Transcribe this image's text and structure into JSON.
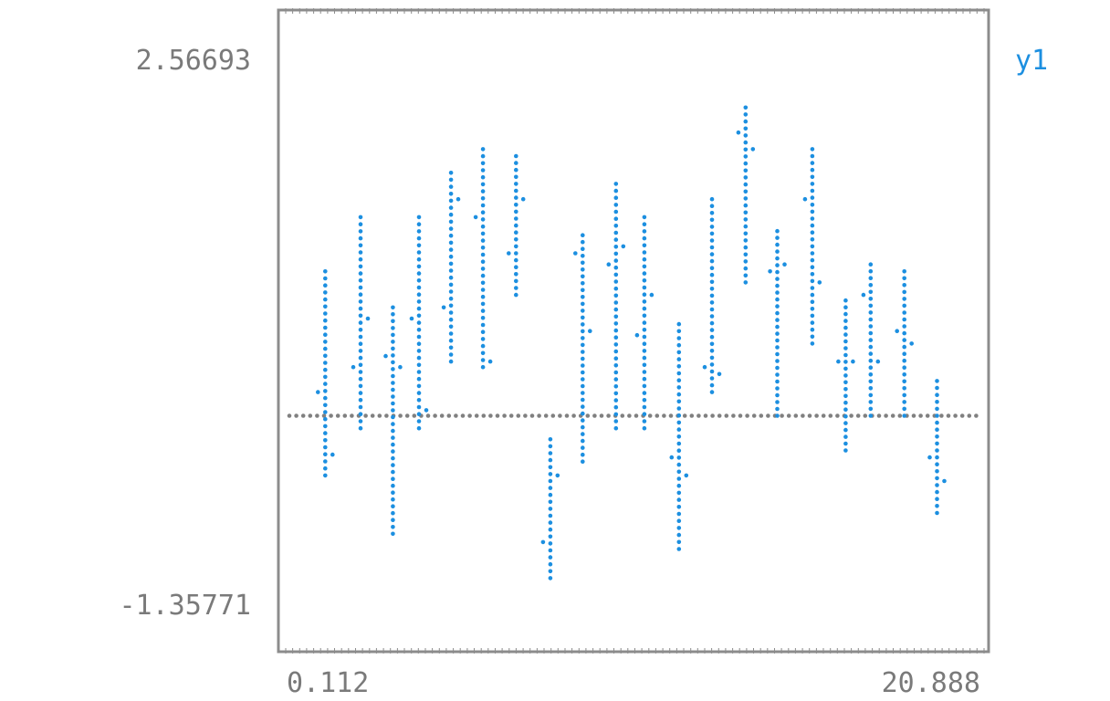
{
  "chart_data": {
    "type": "candlestick",
    "x_ticks": [
      "0.112",
      "20.888"
    ],
    "y_ticks": [
      "2.56693",
      "-1.35771"
    ],
    "xlim": [
      0.112,
      20.888
    ],
    "ylim": [
      -1.35771,
      2.56693
    ],
    "baseline": 0,
    "legend": {
      "label": "y1",
      "position": "top-right"
    },
    "colors": {
      "series": "#1c8fe0",
      "axis": "#8c8c8c",
      "baseline": "#808080",
      "text": "#7a7a7a"
    },
    "bars": [
      {
        "x": 1.2,
        "low": -0.43,
        "high": 1.04,
        "open": 0.17,
        "close": -0.28
      },
      {
        "x": 2.27,
        "low": -0.09,
        "high": 1.43,
        "open": 0.35,
        "close": 0.7
      },
      {
        "x": 3.25,
        "low": -0.85,
        "high": 0.78,
        "open": 0.43,
        "close": 0.35
      },
      {
        "x": 4.04,
        "low": -0.09,
        "high": 1.43,
        "open": 0.7,
        "close": 0.04
      },
      {
        "x": 5.01,
        "low": 0.39,
        "high": 1.75,
        "open": 0.78,
        "close": 1.56
      },
      {
        "x": 5.98,
        "low": 0.35,
        "high": 1.92,
        "open": 1.43,
        "close": 0.39
      },
      {
        "x": 6.98,
        "low": 0.87,
        "high": 1.87,
        "open": 1.17,
        "close": 1.56
      },
      {
        "x": 8.02,
        "low": -1.17,
        "high": -0.17,
        "open": -0.91,
        "close": -0.43
      },
      {
        "x": 9.0,
        "low": -0.33,
        "high": 1.3,
        "open": 1.17,
        "close": 0.61
      },
      {
        "x": 10.01,
        "low": -0.09,
        "high": 1.67,
        "open": 1.09,
        "close": 1.22
      },
      {
        "x": 10.87,
        "low": -0.09,
        "high": 1.43,
        "open": 0.58,
        "close": 0.87
      },
      {
        "x": 11.92,
        "low": -0.96,
        "high": 0.66,
        "open": -0.3,
        "close": -0.43
      },
      {
        "x": 12.92,
        "low": 0.17,
        "high": 1.56,
        "open": 0.35,
        "close": 0.3
      },
      {
        "x": 13.94,
        "low": 0.96,
        "high": 2.22,
        "open": 2.04,
        "close": 1.92
      },
      {
        "x": 14.9,
        "low": 0.0,
        "high": 1.33,
        "open": 1.04,
        "close": 1.09
      },
      {
        "x": 15.96,
        "low": 0.52,
        "high": 1.92,
        "open": 1.56,
        "close": 0.96
      },
      {
        "x": 16.97,
        "low": -0.25,
        "high": 0.83,
        "open": 0.39,
        "close": 0.39
      },
      {
        "x": 17.73,
        "low": 0.0,
        "high": 1.09,
        "open": 0.87,
        "close": 0.39
      },
      {
        "x": 18.75,
        "low": 0.0,
        "high": 1.04,
        "open": 0.61,
        "close": 0.52
      },
      {
        "x": 19.74,
        "low": -0.7,
        "high": 0.25,
        "open": -0.3,
        "close": -0.47
      }
    ]
  }
}
